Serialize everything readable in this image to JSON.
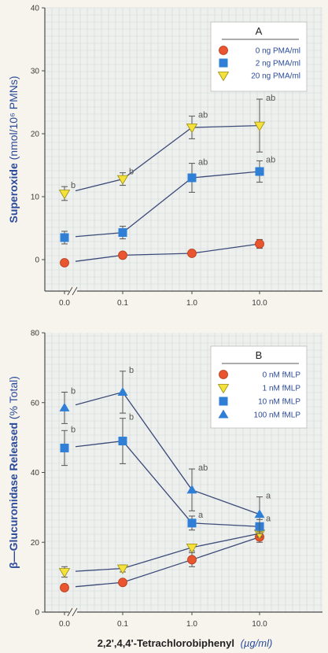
{
  "xlabel_main": "2,2',4,4'-Tetrachlorobiphenyl",
  "xlabel_unit": "(µg/ml)",
  "chart_data": [
    {
      "type": "line",
      "panel": "A",
      "ylabel": {
        "bold": "Superoxide",
        "rest": " (nmol/10⁶ PMNs)"
      },
      "categories": [
        "0.0",
        "0.1",
        "1.0",
        "10.0"
      ],
      "ylim": [
        -5,
        40
      ],
      "yticks": [
        0,
        10,
        20,
        30,
        40
      ],
      "grid": true,
      "legend_position": "top-right",
      "series": [
        {
          "name": "0 ng PMA/ml",
          "marker": "circle",
          "color": "#e8552e",
          "values": [
            -0.5,
            0.7,
            1.0,
            2.5
          ],
          "errors": [
            0,
            0,
            0,
            0.7
          ],
          "labels": [
            "",
            "",
            "",
            ""
          ]
        },
        {
          "name": "2 ng PMA/ml",
          "marker": "square",
          "color": "#2f7fd6",
          "values": [
            3.5,
            4.3,
            13.0,
            14.0
          ],
          "errors": [
            1.0,
            1.0,
            2.3,
            1.7
          ],
          "labels": [
            "",
            "",
            "ab",
            "ab"
          ]
        },
        {
          "name": "20 ng PMA/ml",
          "marker": "triangle-down",
          "color": "#f4e23a",
          "values": [
            10.5,
            12.8,
            21.0,
            21.3
          ],
          "errors": [
            1.1,
            1.0,
            1.8,
            4.2
          ],
          "labels": [
            "b",
            "b",
            "ab",
            "ab"
          ]
        }
      ]
    },
    {
      "type": "line",
      "panel": "B",
      "ylabel": {
        "bold": "β—Glucuronidase Released",
        "rest": " (% Total)"
      },
      "categories": [
        "0.0",
        "0.1",
        "1.0",
        "10.0"
      ],
      "ylim": [
        0,
        80
      ],
      "yticks": [
        0,
        20,
        40,
        60,
        80
      ],
      "grid": true,
      "legend_position": "top-right",
      "series": [
        {
          "name": "0 nM fMLP",
          "marker": "circle",
          "color": "#e8552e",
          "values": [
            7.0,
            8.5,
            15.0,
            21.5
          ],
          "errors": [
            0.8,
            0.8,
            2.0,
            1.5
          ],
          "labels": [
            "",
            "",
            "",
            ""
          ]
        },
        {
          "name": "1 nM fMLP",
          "marker": "triangle-down",
          "color": "#f4e23a",
          "values": [
            11.5,
            12.5,
            18.5,
            22.5
          ],
          "errors": [
            1.5,
            1.0,
            1.0,
            1.0
          ],
          "labels": [
            "",
            "",
            "",
            ""
          ]
        },
        {
          "name": "10 nM fMLP",
          "marker": "square",
          "color": "#2f7fd6",
          "values": [
            47.0,
            49.0,
            25.5,
            24.5
          ],
          "errors": [
            5.0,
            6.5,
            2.0,
            2.0
          ],
          "labels": [
            "b",
            "b",
            "a",
            "a"
          ]
        },
        {
          "name": "100 nM fMLP",
          "marker": "triangle-up",
          "color": "#2f7fd6",
          "values": [
            58.5,
            63.0,
            35.0,
            28.0
          ],
          "errors": [
            4.5,
            6.0,
            6.0,
            5.0
          ],
          "labels": [
            "b",
            "b",
            "ab",
            "a"
          ]
        }
      ]
    }
  ]
}
